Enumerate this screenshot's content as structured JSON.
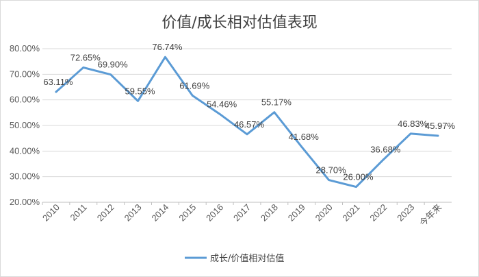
{
  "chart_data": {
    "type": "line",
    "title": "价值/成长相对估值表现",
    "categories": [
      "2010",
      "2011",
      "2012",
      "2013",
      "2014",
      "2015",
      "2016",
      "2017",
      "2018",
      "2019",
      "2020",
      "2021",
      "2022",
      "2023",
      "今年来"
    ],
    "series": [
      {
        "name": "成长/价值相对估值",
        "values": [
          63.11,
          72.65,
          69.9,
          59.55,
          76.74,
          61.69,
          54.46,
          46.57,
          55.17,
          41.68,
          28.7,
          26.0,
          36.68,
          46.83,
          45.97
        ],
        "labels": [
          "63.11%",
          "72.65%",
          "69.90%",
          "59.55%",
          "76.74%",
          "61.69%",
          "54.46%",
          "46.57%",
          "55.17%",
          "41.68%",
          "28.70%",
          "26.00%",
          "36.68%",
          "46.83%",
          "45.97%"
        ],
        "color": "#5b9bd5"
      }
    ],
    "y_ticks": [
      "20.00%",
      "30.00%",
      "40.00%",
      "50.00%",
      "60.00%",
      "70.00%",
      "80.00%"
    ],
    "ylim": [
      20,
      80
    ],
    "grid": true,
    "legend_position": "bottom"
  }
}
